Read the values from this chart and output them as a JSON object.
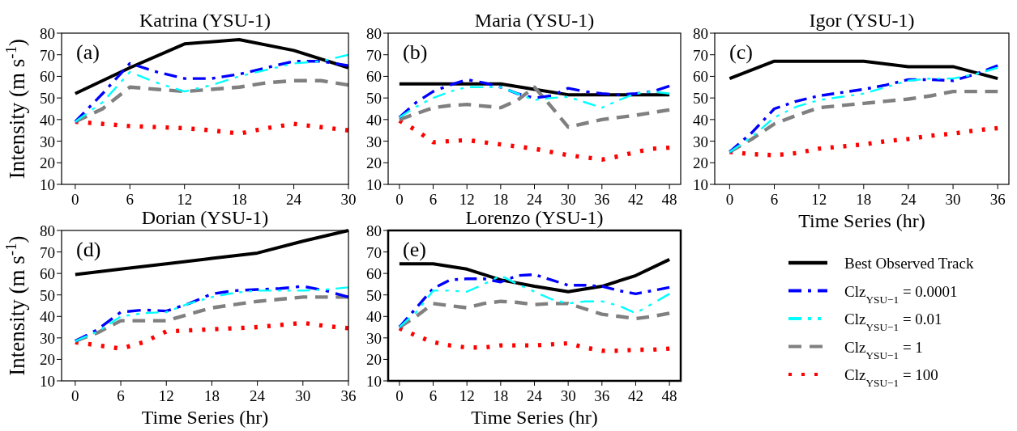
{
  "chart_data": [
    {
      "type": "line",
      "title": "Katrina (YSU-1)",
      "ylabel": "Intensity (m s$^{-1}$)",
      "annotations": [
        "(a)"
      ],
      "xlim": [
        -1.5,
        30
      ],
      "xticks": [
        0,
        6,
        12,
        18,
        24,
        30
      ],
      "ylim": [
        10,
        80
      ],
      "yticks": [
        10,
        20,
        30,
        40,
        50,
        60,
        70,
        80
      ],
      "grid": false,
      "legend": false,
      "series": [
        {
          "color": "#000000",
          "line_style": "solid",
          "x": [
            0,
            6,
            12,
            18,
            24,
            30
          ],
          "values": [
            52,
            64,
            75,
            77,
            72,
            64
          ]
        },
        {
          "color": "#0000ff",
          "line_style": "dashdot",
          "x": [
            0,
            3,
            6,
            9,
            12,
            15,
            18,
            21,
            24,
            27,
            30
          ],
          "values": [
            39,
            52,
            66,
            62,
            59,
            59,
            61,
            64,
            67,
            67,
            65
          ]
        },
        {
          "color": "#00ffff",
          "line_style": "dashdotdot",
          "x": [
            0,
            3,
            6,
            9,
            12,
            15,
            18,
            21,
            24,
            27,
            30
          ],
          "values": [
            39,
            48,
            62,
            57,
            53,
            56,
            60,
            63,
            66,
            67,
            70
          ]
        },
        {
          "color": "#808080",
          "line_style": "dashed",
          "x": [
            0,
            3,
            6,
            9,
            12,
            15,
            18,
            21,
            24,
            27,
            30
          ],
          "values": [
            39,
            45,
            55,
            54,
            53,
            54,
            55,
            57,
            58,
            58,
            56
          ]
        },
        {
          "color": "#ff0000",
          "line_style": "dotted",
          "x": [
            0,
            3,
            6,
            9,
            12,
            15,
            18,
            21,
            24,
            27,
            30
          ],
          "values": [
            39,
            38,
            37,
            36.5,
            36,
            35,
            33.5,
            36,
            38,
            36.5,
            35
          ]
        }
      ]
    },
    {
      "type": "line",
      "title": "Maria (YSU-1)",
      "annotations": [
        "(b)"
      ],
      "xlim": [
        -2,
        50
      ],
      "xticks": [
        0,
        6,
        12,
        18,
        24,
        30,
        36,
        42,
        48
      ],
      "ylim": [
        10,
        80
      ],
      "yticks": [
        10,
        20,
        30,
        40,
        50,
        60,
        70,
        80
      ],
      "grid": false,
      "legend": false,
      "series": [
        {
          "color": "#000000",
          "line_style": "solid",
          "x": [
            0,
            6,
            12,
            18,
            24,
            30,
            36,
            42,
            48
          ],
          "values": [
            56.5,
            56.5,
            56.5,
            56.5,
            54,
            51.5,
            51.5,
            51.5,
            51.5
          ]
        },
        {
          "color": "#0000ff",
          "line_style": "dashdot",
          "x": [
            0,
            3,
            6,
            9,
            12,
            15,
            18,
            21,
            24,
            27,
            30,
            33,
            36,
            39,
            42,
            45,
            48
          ],
          "values": [
            41,
            48,
            53,
            56,
            58.5,
            57,
            55,
            52,
            50,
            51,
            54.5,
            53,
            52,
            51.5,
            52,
            53,
            55.5
          ]
        },
        {
          "color": "#00ffff",
          "line_style": "dashdotdot",
          "x": [
            0,
            3,
            6,
            9,
            12,
            15,
            18,
            21,
            24,
            27,
            30,
            33,
            36,
            39,
            42,
            45,
            48
          ],
          "values": [
            41,
            46,
            50,
            53,
            55,
            55,
            55,
            52,
            49,
            50,
            50.5,
            48,
            45.5,
            49,
            52,
            53,
            52
          ]
        },
        {
          "color": "#808080",
          "line_style": "dashed",
          "x": [
            0,
            6,
            9,
            12,
            18,
            21,
            24,
            27,
            30,
            36,
            42,
            48
          ],
          "values": [
            40,
            45.5,
            46.5,
            47,
            45.5,
            49,
            55,
            46,
            36.5,
            40,
            42,
            44.5
          ]
        },
        {
          "color": "#ff0000",
          "line_style": "dotted",
          "x": [
            0,
            3,
            6,
            12,
            18,
            24,
            30,
            36,
            39,
            42,
            45,
            48
          ],
          "values": [
            39.5,
            35,
            29.5,
            30.5,
            28.5,
            26.5,
            23.5,
            21.5,
            23,
            25,
            26.5,
            27
          ]
        }
      ]
    },
    {
      "type": "line",
      "title": "Igor (YSU-1)",
      "xlabel": "Time Series (hr)",
      "annotations": [
        "(c)"
      ],
      "xlim": [
        -2,
        37.5
      ],
      "xticks": [
        0,
        6,
        12,
        18,
        24,
        30,
        36
      ],
      "ylim": [
        10,
        80
      ],
      "yticks": [
        10,
        20,
        30,
        40,
        50,
        60,
        70,
        80
      ],
      "grid": false,
      "legend": false,
      "series": [
        {
          "color": "#000000",
          "line_style": "solid",
          "x": [
            0,
            6,
            12,
            18,
            24,
            30,
            36
          ],
          "values": [
            59,
            67,
            67,
            67,
            64.5,
            64.5,
            59
          ]
        },
        {
          "color": "#0000ff",
          "line_style": "dashdot",
          "x": [
            0,
            3,
            6,
            9,
            12,
            15,
            18,
            21,
            24,
            27,
            30,
            33,
            36
          ],
          "values": [
            25,
            34,
            45,
            48.5,
            51,
            52.5,
            54,
            56,
            58.5,
            58.5,
            58,
            61,
            65
          ]
        },
        {
          "color": "#00ffff",
          "line_style": "dashdotdot",
          "x": [
            0,
            3,
            6,
            9,
            12,
            15,
            18,
            21,
            24,
            27,
            30,
            33,
            36
          ],
          "values": [
            25,
            32,
            41,
            46,
            49,
            50.5,
            52,
            55,
            58,
            59,
            59,
            61,
            64
          ]
        },
        {
          "color": "#808080",
          "line_style": "dashed",
          "x": [
            0,
            3,
            6,
            9,
            12,
            15,
            18,
            21,
            24,
            27,
            30,
            33,
            36
          ],
          "values": [
            25,
            31,
            38,
            42,
            45.5,
            46.5,
            47.5,
            48.5,
            49.5,
            51,
            53,
            53,
            53
          ]
        },
        {
          "color": "#ff0000",
          "line_style": "dotted",
          "x": [
            0,
            3,
            6,
            9,
            12,
            15,
            18,
            21,
            24,
            27,
            30,
            33,
            36
          ],
          "values": [
            25,
            24,
            23.5,
            24.5,
            26.5,
            27.5,
            28.5,
            30,
            31,
            32.5,
            33.5,
            35,
            36
          ]
        }
      ]
    },
    {
      "type": "line",
      "title": "Dorian (YSU-1)",
      "xlabel": "Time Series (hr)",
      "ylabel": "Intensity (m s$^{-1}$)",
      "annotations": [
        "(d)"
      ],
      "xlim": [
        -1.8,
        36
      ],
      "xticks": [
        0,
        6,
        12,
        18,
        24,
        30,
        36
      ],
      "ylim": [
        10,
        80
      ],
      "yticks": [
        10,
        20,
        30,
        40,
        50,
        60,
        70,
        80
      ],
      "grid": false,
      "legend": false,
      "series": [
        {
          "color": "#000000",
          "line_style": "solid",
          "x": [
            0,
            6,
            12,
            18,
            24,
            30,
            36
          ],
          "values": [
            59.5,
            62,
            64.5,
            67,
            69.5,
            75,
            80
          ]
        },
        {
          "color": "#0000ff",
          "line_style": "dashdot",
          "x": [
            0,
            3,
            6,
            9,
            12,
            15,
            18,
            21,
            24,
            27,
            30,
            33,
            36
          ],
          "values": [
            28.5,
            34,
            42,
            43,
            42.5,
            46,
            50.5,
            52,
            52.5,
            53,
            54,
            52,
            49
          ]
        },
        {
          "color": "#00ffff",
          "line_style": "dashdotdot",
          "x": [
            0,
            3,
            6,
            9,
            12,
            15,
            18,
            21,
            24,
            27,
            30,
            33,
            36
          ],
          "values": [
            28.5,
            33,
            40,
            41.5,
            42,
            46,
            49,
            51,
            52,
            52,
            52,
            52.5,
            53.5
          ]
        },
        {
          "color": "#808080",
          "line_style": "dashed",
          "x": [
            0,
            3,
            6,
            9,
            12,
            15,
            18,
            21,
            24,
            27,
            30,
            33,
            36
          ],
          "values": [
            28.5,
            32.5,
            38,
            38,
            38,
            41,
            44,
            45.5,
            47,
            48,
            49,
            49,
            49
          ]
        },
        {
          "color": "#ff0000",
          "line_style": "dotted",
          "x": [
            0,
            3,
            6,
            9,
            12,
            15,
            18,
            21,
            24,
            27,
            30,
            33,
            36
          ],
          "values": [
            28,
            26.5,
            25,
            28,
            33,
            33.5,
            34,
            34.5,
            35,
            36,
            37,
            35.5,
            34.5
          ]
        }
      ]
    },
    {
      "type": "line",
      "title": "Lorenzo (YSU-1)",
      "xlabel": "Time Series (hr)",
      "annotations": [
        "(e)"
      ],
      "xlim": [
        -2,
        50
      ],
      "xticks": [
        0,
        6,
        12,
        18,
        24,
        30,
        36,
        42,
        48
      ],
      "ylim": [
        10,
        80
      ],
      "yticks": [
        10,
        20,
        30,
        40,
        50,
        60,
        70,
        80
      ],
      "grid": false,
      "legend": "right",
      "series": [
        {
          "name": "Best Observed Track",
          "color": "#000000",
          "line_style": "solid",
          "x": [
            0,
            6,
            12,
            18,
            24,
            30,
            36,
            42,
            48
          ],
          "values": [
            64.5,
            64.5,
            62,
            57,
            54,
            51.5,
            54,
            59,
            66.5
          ]
        },
        {
          "name": "Clz$_{YSU−1}$ = 0.0001",
          "color": "#0000ff",
          "line_style": "dashdot",
          "x": [
            0,
            3,
            6,
            9,
            12,
            15,
            18,
            21,
            24,
            27,
            30,
            33,
            36,
            39,
            42,
            45,
            48
          ],
          "values": [
            35,
            44,
            53,
            57,
            57.5,
            57.5,
            56,
            59,
            59.5,
            57,
            54.5,
            54.5,
            54,
            52,
            50.5,
            52,
            53.5
          ]
        },
        {
          "name": "Clz$_{YSU−1}$ = 0.01",
          "color": "#00ffff",
          "line_style": "dashdotdot",
          "x": [
            0,
            3,
            6,
            9,
            12,
            15,
            18,
            21,
            24,
            27,
            30,
            33,
            36,
            39,
            42,
            45,
            48
          ],
          "values": [
            35,
            42,
            52,
            52,
            51.5,
            55,
            59,
            55,
            51.5,
            48,
            46,
            47,
            47,
            45,
            41.5,
            46,
            50.5
          ]
        },
        {
          "name": "Clz$_{YSU−1}$ = 1",
          "color": "#808080",
          "line_style": "dashed",
          "x": [
            0,
            3,
            6,
            9,
            12,
            15,
            18,
            21,
            24,
            27,
            30,
            33,
            36,
            39,
            42,
            45,
            48
          ],
          "values": [
            35,
            40,
            46,
            45,
            44,
            46,
            47,
            46.5,
            45.5,
            46,
            46,
            43.5,
            41,
            40,
            39,
            40,
            41.5
          ]
        },
        {
          "name": "Clz$_{YSU−1}$ = 100",
          "color": "#ff0000",
          "line_style": "dotted",
          "x": [
            0,
            3,
            6,
            9,
            12,
            15,
            18,
            21,
            24,
            27,
            30,
            33,
            36,
            39,
            42,
            45,
            48
          ],
          "values": [
            34.5,
            31,
            28,
            26.5,
            25.5,
            25.5,
            26.5,
            26.5,
            26.5,
            27,
            27.5,
            25.5,
            24,
            24,
            24.5,
            24.5,
            25
          ]
        }
      ]
    }
  ]
}
